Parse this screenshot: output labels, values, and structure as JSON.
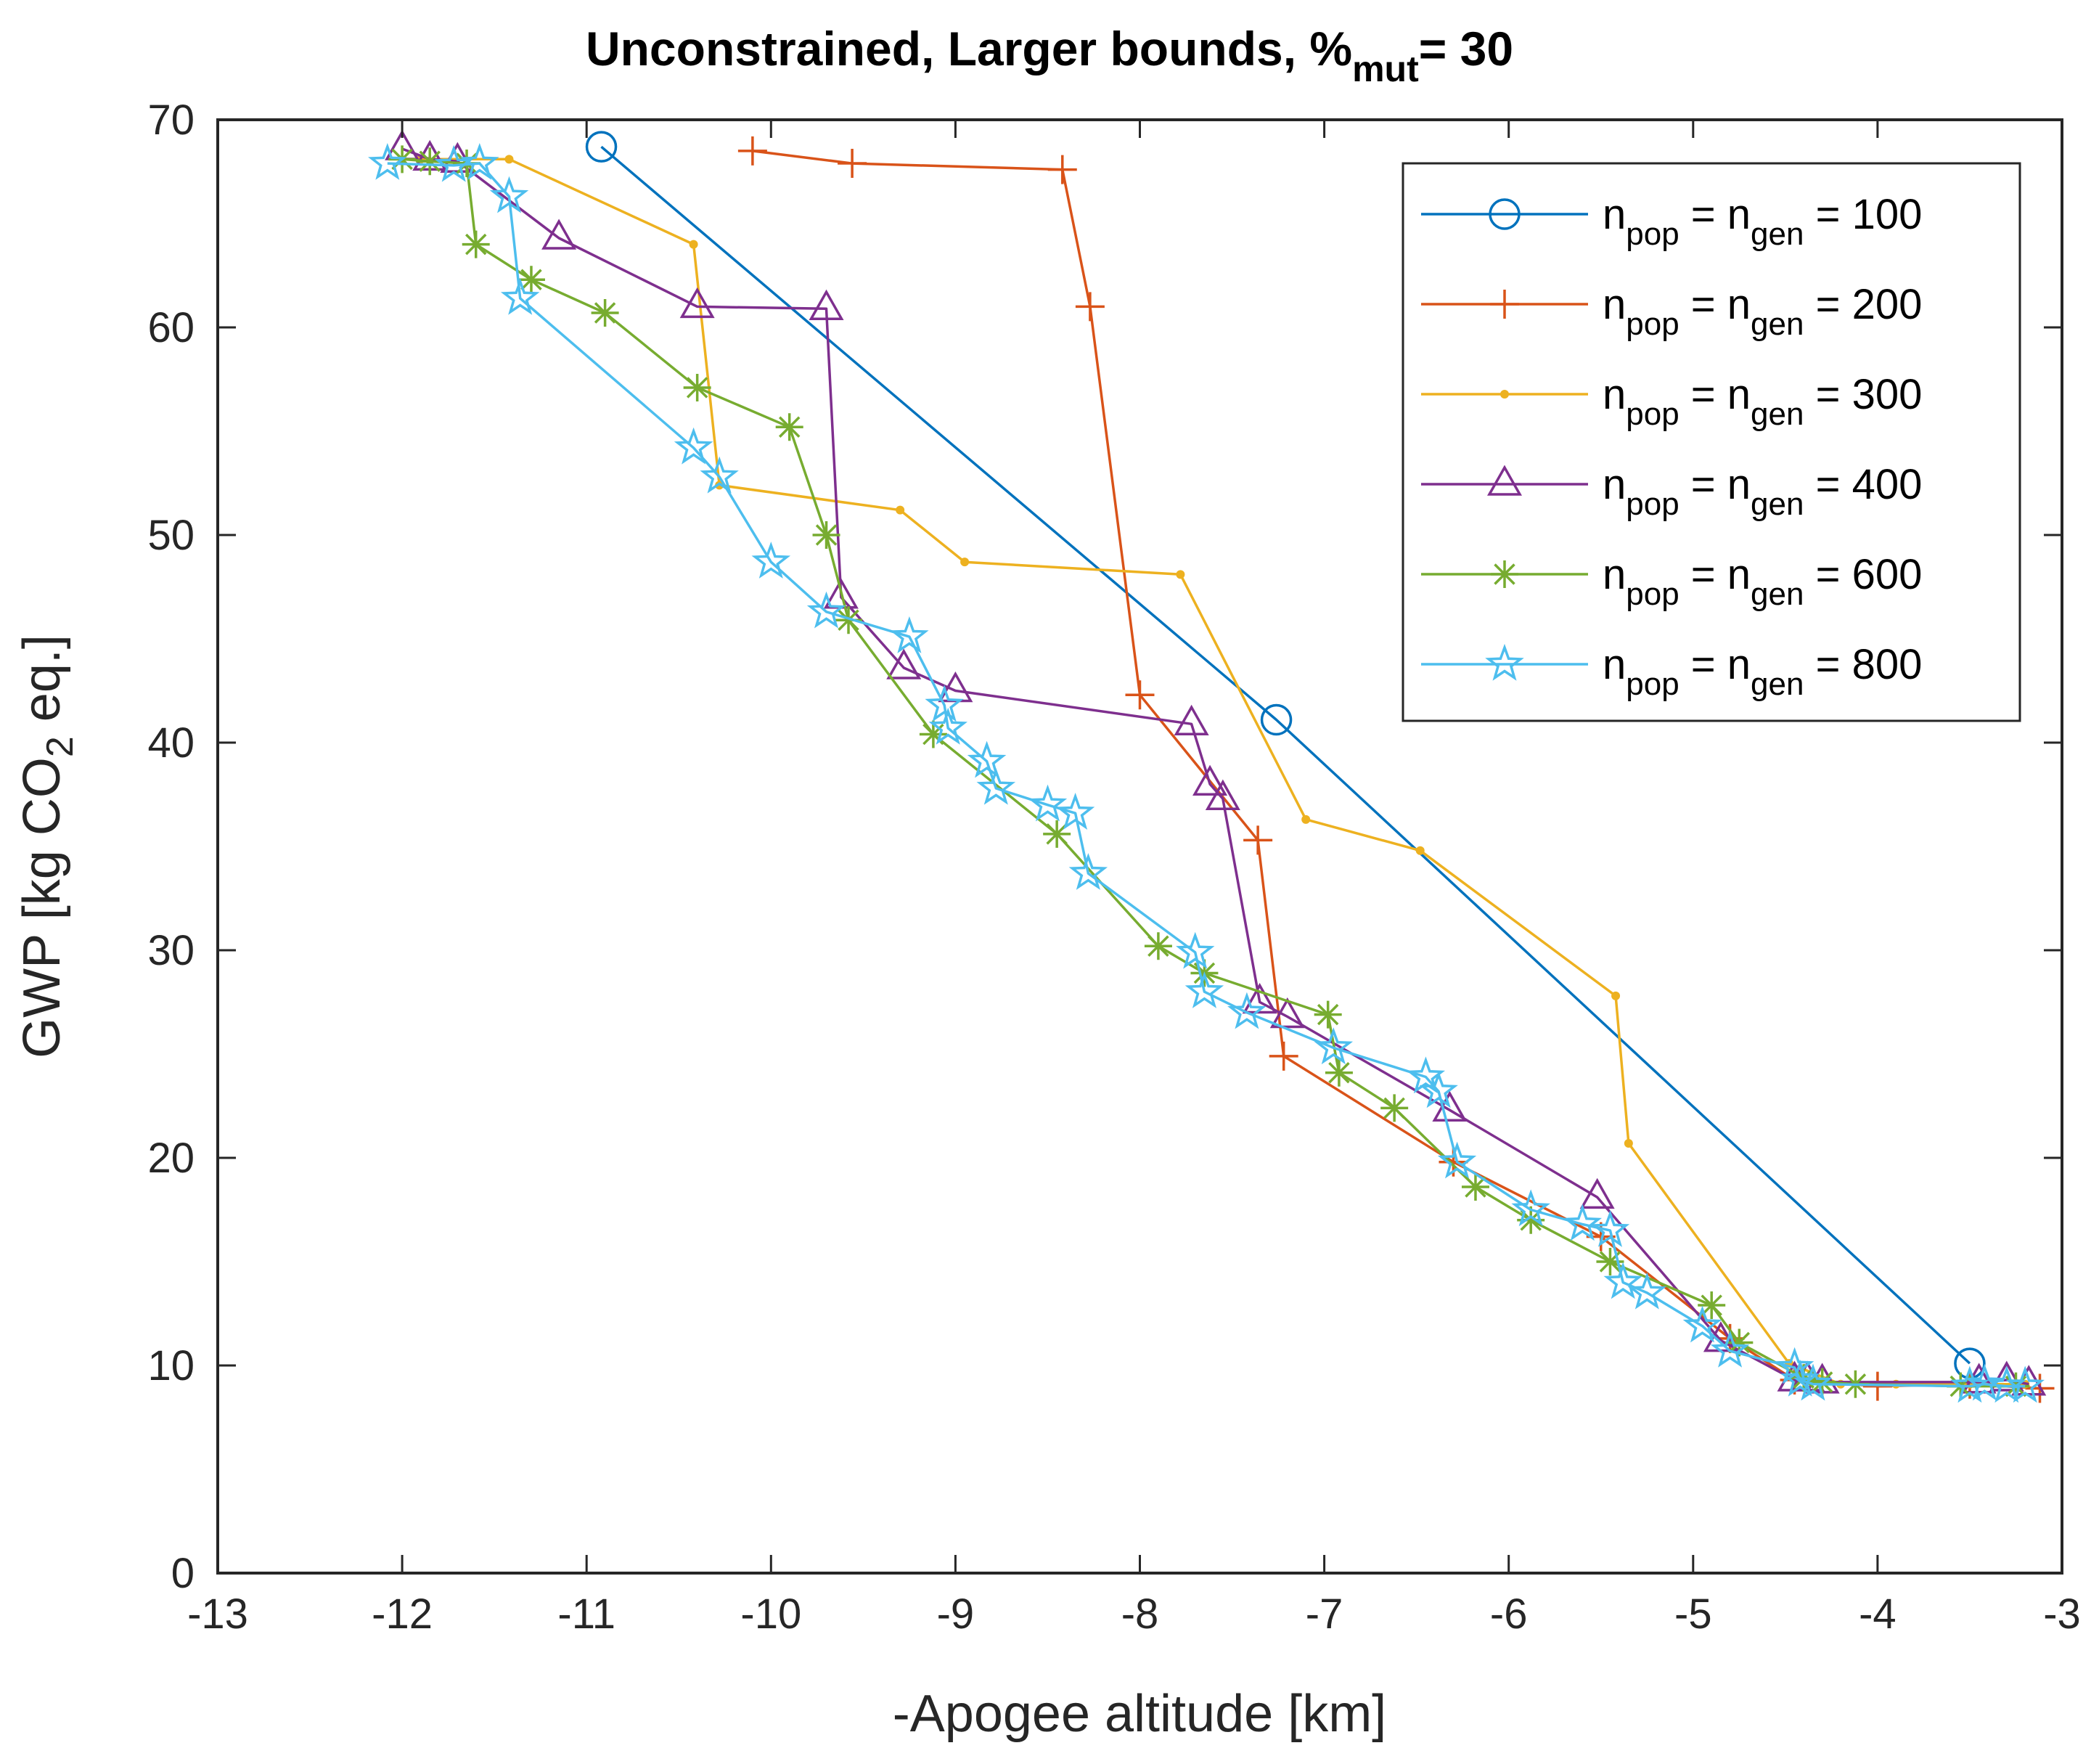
{
  "chart_data": {
    "type": "line",
    "title": {
      "main": "Unconstrained, Larger bounds, %",
      "sub": "mut",
      "tail": "= 30"
    },
    "xlabel": "-Apogee altitude [km]",
    "ylabel": {
      "pre": "GWP [kg CO",
      "sub": "2",
      "post": " eq.]"
    },
    "xlim": [
      -13,
      -3
    ],
    "ylim": [
      0,
      70
    ],
    "xticks": [
      -13,
      -12,
      -11,
      -10,
      -9,
      -8,
      -7,
      -6,
      -5,
      -4,
      -3
    ],
    "yticks": [
      0,
      10,
      20,
      30,
      40,
      50,
      60,
      70
    ],
    "legend_position": "top-right",
    "series": [
      {
        "name": "n_pop = n_gen = 100",
        "value_label": "= 100",
        "color": "#0072BD",
        "marker": "circle",
        "points": [
          [
            -10.92,
            68.7
          ],
          [
            -7.26,
            41.1
          ],
          [
            -3.5,
            10.1
          ]
        ]
      },
      {
        "name": "n_pop = n_gen = 200",
        "value_label": "= 200",
        "color": "#D95319",
        "marker": "plus",
        "points": [
          [
            -10.1,
            68.5
          ],
          [
            -9.56,
            67.9
          ],
          [
            -8.42,
            67.6
          ],
          [
            -8.27,
            61.0
          ],
          [
            -8.0,
            42.3
          ],
          [
            -7.36,
            35.3
          ],
          [
            -7.22,
            24.9
          ],
          [
            -6.3,
            19.8
          ],
          [
            -5.5,
            16.2
          ],
          [
            -4.8,
            11.3
          ],
          [
            -4.45,
            9.3
          ],
          [
            -4.0,
            9.0
          ],
          [
            -3.5,
            9.1
          ],
          [
            -3.12,
            8.9
          ]
        ]
      },
      {
        "name": "n_pop = n_gen = 300",
        "value_label": "= 300",
        "color": "#EDB120",
        "marker": "dot",
        "points": [
          [
            -11.9,
            68.1
          ],
          [
            -11.42,
            68.1
          ],
          [
            -10.42,
            64.0
          ],
          [
            -10.28,
            52.4
          ],
          [
            -9.3,
            51.2
          ],
          [
            -8.95,
            48.7
          ],
          [
            -7.78,
            48.1
          ],
          [
            -7.1,
            36.3
          ],
          [
            -6.48,
            34.8
          ],
          [
            -5.42,
            27.8
          ],
          [
            -5.35,
            20.7
          ],
          [
            -4.48,
            10.1
          ],
          [
            -4.2,
            9.1
          ],
          [
            -3.9,
            9.1
          ],
          [
            -3.5,
            9.1
          ],
          [
            -3.2,
            9.1
          ]
        ]
      },
      {
        "name": "n_pop = n_gen = 400",
        "value_label": "= 400",
        "color": "#7E2F8E",
        "marker": "triangle",
        "points": [
          [
            -12.0,
            68.6
          ],
          [
            -11.85,
            68.1
          ],
          [
            -11.7,
            68.0
          ],
          [
            -11.15,
            64.3
          ],
          [
            -10.4,
            61.0
          ],
          [
            -9.7,
            60.9
          ],
          [
            -9.62,
            47.0
          ],
          [
            -9.28,
            43.6
          ],
          [
            -9.0,
            42.5
          ],
          [
            -7.72,
            40.9
          ],
          [
            -7.62,
            38.0
          ],
          [
            -7.55,
            37.3
          ],
          [
            -7.35,
            27.5
          ],
          [
            -7.2,
            26.8
          ],
          [
            -6.32,
            22.3
          ],
          [
            -5.52,
            18.1
          ],
          [
            -4.85,
            11.2
          ],
          [
            -4.45,
            9.3
          ],
          [
            -4.38,
            9.3
          ],
          [
            -4.3,
            9.2
          ],
          [
            -3.45,
            9.2
          ],
          [
            -3.3,
            9.3
          ],
          [
            -3.18,
            9.1
          ]
        ]
      },
      {
        "name": "n_pop = n_gen = 600",
        "value_label": "= 600",
        "color": "#77AC30",
        "marker": "asterisk",
        "points": [
          [
            -12.0,
            68.1
          ],
          [
            -11.85,
            68.0
          ],
          [
            -11.65,
            67.9
          ],
          [
            -11.6,
            64.0
          ],
          [
            -11.3,
            62.3
          ],
          [
            -10.9,
            60.7
          ],
          [
            -10.4,
            57.1
          ],
          [
            -9.9,
            55.2
          ],
          [
            -9.7,
            50.0
          ],
          [
            -9.58,
            45.9
          ],
          [
            -9.12,
            40.4
          ],
          [
            -8.45,
            35.6
          ],
          [
            -7.9,
            30.2
          ],
          [
            -7.65,
            28.9
          ],
          [
            -6.98,
            26.9
          ],
          [
            -6.92,
            24.1
          ],
          [
            -6.62,
            22.4
          ],
          [
            -6.18,
            18.6
          ],
          [
            -5.88,
            17.0
          ],
          [
            -5.45,
            15.0
          ],
          [
            -4.9,
            12.9
          ],
          [
            -4.75,
            11.1
          ],
          [
            -4.4,
            9.4
          ],
          [
            -4.3,
            9.2
          ],
          [
            -4.12,
            9.1
          ],
          [
            -3.55,
            9.0
          ],
          [
            -3.25,
            9.0
          ]
        ]
      },
      {
        "name": "n_pop = n_gen = 800",
        "value_label": "= 800",
        "color": "#4DBEEE",
        "marker": "star",
        "points": [
          [
            -12.08,
            67.9
          ],
          [
            -11.72,
            67.8
          ],
          [
            -11.58,
            67.9
          ],
          [
            -11.42,
            66.3
          ],
          [
            -11.36,
            61.4
          ],
          [
            -10.42,
            54.2
          ],
          [
            -10.28,
            52.8
          ],
          [
            -10.0,
            48.7
          ],
          [
            -9.7,
            46.3
          ],
          [
            -9.25,
            45.1
          ],
          [
            -9.06,
            41.8
          ],
          [
            -9.04,
            40.7
          ],
          [
            -8.83,
            39.1
          ],
          [
            -8.78,
            37.8
          ],
          [
            -8.5,
            37.0
          ],
          [
            -8.35,
            36.6
          ],
          [
            -8.28,
            33.7
          ],
          [
            -7.7,
            29.9
          ],
          [
            -7.65,
            28.0
          ],
          [
            -7.42,
            27.0
          ],
          [
            -6.95,
            25.3
          ],
          [
            -6.45,
            23.9
          ],
          [
            -6.38,
            23.2
          ],
          [
            -6.28,
            19.8
          ],
          [
            -5.88,
            17.5
          ],
          [
            -5.6,
            16.8
          ],
          [
            -5.45,
            16.5
          ],
          [
            -5.38,
            14.0
          ],
          [
            -5.25,
            13.5
          ],
          [
            -4.95,
            11.9
          ],
          [
            -4.8,
            10.7
          ],
          [
            -4.45,
            9.9
          ],
          [
            -4.42,
            9.3
          ],
          [
            -4.35,
            9.1
          ],
          [
            -3.5,
            9.0
          ],
          [
            -3.42,
            9.1
          ],
          [
            -3.3,
            9.0
          ],
          [
            -3.2,
            9.0
          ]
        ]
      }
    ]
  }
}
